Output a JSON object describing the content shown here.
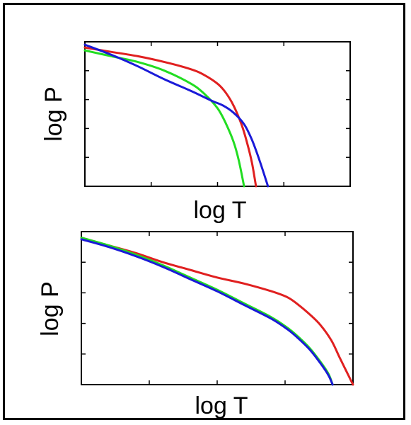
{
  "colors": {
    "red": "#e02020",
    "green": "#22dd22",
    "blue": "#1a1ad8"
  },
  "chart_data": [
    {
      "type": "line",
      "title": "",
      "xlabel": "log T",
      "ylabel": "log P",
      "xlim": [
        0,
        1
      ],
      "ylim": [
        0,
        1
      ],
      "x_ticks": [
        0.25,
        0.5,
        0.75
      ],
      "y_ticks": [
        0.2,
        0.4,
        0.6,
        0.8
      ],
      "grid": false,
      "legend": "none",
      "series": [
        {
          "color": "red",
          "points": [
            [
              0,
              0.96
            ],
            [
              0.1,
              0.93
            ],
            [
              0.2,
              0.9
            ],
            [
              0.3,
              0.86
            ],
            [
              0.4,
              0.81
            ],
            [
              0.45,
              0.77
            ],
            [
              0.5,
              0.71
            ],
            [
              0.53,
              0.65
            ],
            [
              0.56,
              0.56
            ],
            [
              0.59,
              0.43
            ],
            [
              0.61,
              0.31
            ],
            [
              0.63,
              0.16
            ],
            [
              0.645,
              0.0
            ]
          ]
        },
        {
          "color": "green",
          "points": [
            [
              0,
              0.94
            ],
            [
              0.1,
              0.9
            ],
            [
              0.2,
              0.86
            ],
            [
              0.3,
              0.8
            ],
            [
              0.4,
              0.71
            ],
            [
              0.45,
              0.64
            ],
            [
              0.5,
              0.54
            ],
            [
              0.53,
              0.44
            ],
            [
              0.56,
              0.31
            ],
            [
              0.58,
              0.18
            ],
            [
              0.6,
              0.0
            ]
          ]
        },
        {
          "color": "blue",
          "points": [
            [
              0,
              0.98
            ],
            [
              0.1,
              0.91
            ],
            [
              0.2,
              0.83
            ],
            [
              0.3,
              0.74
            ],
            [
              0.4,
              0.66
            ],
            [
              0.48,
              0.59
            ],
            [
              0.52,
              0.56
            ],
            [
              0.56,
              0.51
            ],
            [
              0.6,
              0.43
            ],
            [
              0.63,
              0.32
            ],
            [
              0.66,
              0.17
            ],
            [
              0.69,
              0.0
            ]
          ]
        }
      ]
    },
    {
      "type": "line",
      "title": "",
      "xlabel": "log T",
      "ylabel": "log P",
      "xlim": [
        0,
        1
      ],
      "ylim": [
        0,
        1
      ],
      "x_ticks": [
        0.25,
        0.5,
        0.75
      ],
      "y_ticks": [
        0.2,
        0.4,
        0.6,
        0.8
      ],
      "grid": false,
      "legend": "none",
      "series": [
        {
          "color": "red",
          "points": [
            [
              0,
              0.96
            ],
            [
              0.1,
              0.91
            ],
            [
              0.2,
              0.86
            ],
            [
              0.3,
              0.8
            ],
            [
              0.4,
              0.75
            ],
            [
              0.5,
              0.7
            ],
            [
              0.6,
              0.66
            ],
            [
              0.7,
              0.61
            ],
            [
              0.76,
              0.57
            ],
            [
              0.8,
              0.52
            ],
            [
              0.84,
              0.46
            ],
            [
              0.88,
              0.39
            ],
            [
              0.92,
              0.29
            ],
            [
              0.95,
              0.18
            ],
            [
              0.975,
              0.09
            ],
            [
              1.0,
              0.0
            ]
          ]
        },
        {
          "color": "green",
          "points": [
            [
              0,
              0.96
            ],
            [
              0.1,
              0.91
            ],
            [
              0.2,
              0.85
            ],
            [
              0.3,
              0.78
            ],
            [
              0.4,
              0.7
            ],
            [
              0.5,
              0.62
            ],
            [
              0.6,
              0.53
            ],
            [
              0.7,
              0.44
            ],
            [
              0.76,
              0.37
            ],
            [
              0.8,
              0.31
            ],
            [
              0.84,
              0.24
            ],
            [
              0.88,
              0.15
            ],
            [
              0.91,
              0.07
            ],
            [
              0.925,
              0.0
            ]
          ]
        },
        {
          "color": "blue",
          "points": [
            [
              0,
              0.95
            ],
            [
              0.1,
              0.9
            ],
            [
              0.2,
              0.84
            ],
            [
              0.3,
              0.77
            ],
            [
              0.4,
              0.69
            ],
            [
              0.5,
              0.61
            ],
            [
              0.6,
              0.52
            ],
            [
              0.7,
              0.43
            ],
            [
              0.76,
              0.36
            ],
            [
              0.8,
              0.3
            ],
            [
              0.84,
              0.23
            ],
            [
              0.88,
              0.14
            ],
            [
              0.91,
              0.06
            ],
            [
              0.925,
              0.0
            ]
          ]
        }
      ]
    }
  ]
}
